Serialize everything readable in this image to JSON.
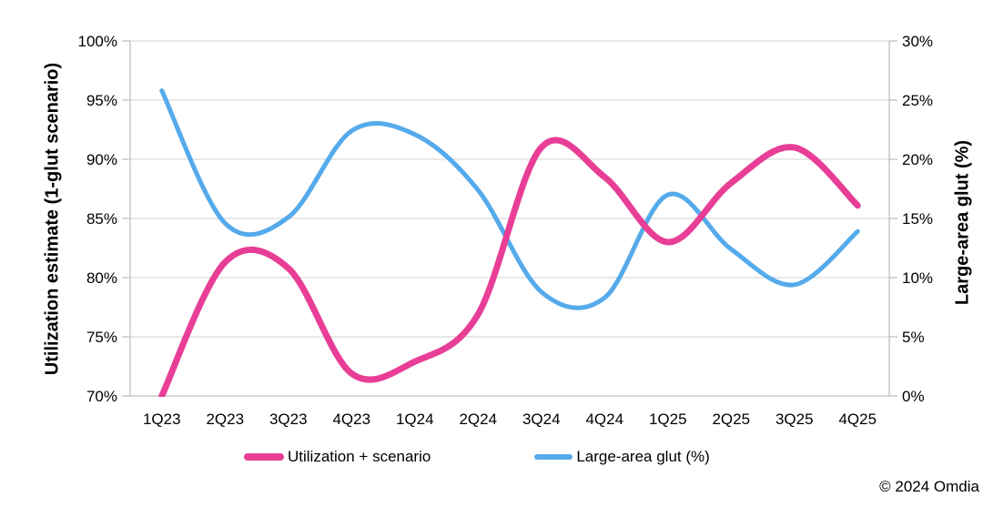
{
  "page": {
    "background": "#ffffff"
  },
  "footer": {
    "copyright": "© 2024 Omdia"
  },
  "chart_data": {
    "type": "line",
    "smooth": true,
    "grid": true,
    "legend_position": "bottom",
    "categories": [
      "1Q23",
      "2Q23",
      "3Q23",
      "4Q23",
      "1Q24",
      "2Q24",
      "3Q24",
      "4Q24",
      "1Q25",
      "2Q25",
      "3Q25",
      "4Q25"
    ],
    "series": [
      {
        "id": "utilization",
        "name": "Utilization + scenario",
        "axis": "left",
        "color": "#e83e96",
        "stroke_width": 7,
        "values": [
          70.0,
          81.3,
          80.8,
          71.9,
          72.9,
          76.9,
          91.0,
          88.5,
          83.0,
          88.0,
          91.0,
          86.1
        ]
      },
      {
        "id": "glut",
        "name": "Large-area glut (%)",
        "axis": "right",
        "color": "#55aaeb",
        "stroke_width": 5,
        "values": [
          25.8,
          14.6,
          15.1,
          22.4,
          22.1,
          17.4,
          8.8,
          8.3,
          17.0,
          12.4,
          9.4,
          13.9
        ]
      }
    ],
    "left_axis": {
      "title": "Utilization estimate (1-glut scenario)",
      "min": 70,
      "max": 100,
      "ticks": [
        {
          "value": 70,
          "label": "70%"
        },
        {
          "value": 75,
          "label": "75%"
        },
        {
          "value": 80,
          "label": "80%"
        },
        {
          "value": 85,
          "label": "85%"
        },
        {
          "value": 90,
          "label": "90%"
        },
        {
          "value": 95,
          "label": "95%"
        },
        {
          "value": 100,
          "label": "100%"
        }
      ]
    },
    "right_axis": {
      "title": "Large-area glut (%)",
      "min": 0,
      "max": 30,
      "ticks": [
        {
          "value": 0,
          "label": "0%"
        },
        {
          "value": 5,
          "label": "5%"
        },
        {
          "value": 10,
          "label": "10%"
        },
        {
          "value": 15,
          "label": "15%"
        },
        {
          "value": 20,
          "label": "20%"
        },
        {
          "value": 25,
          "label": "25%"
        },
        {
          "value": 30,
          "label": "30%"
        }
      ]
    },
    "colors": {
      "gridline": "#d9d9d9",
      "axis_line": "#bfbfbf",
      "text": "#000000"
    }
  }
}
